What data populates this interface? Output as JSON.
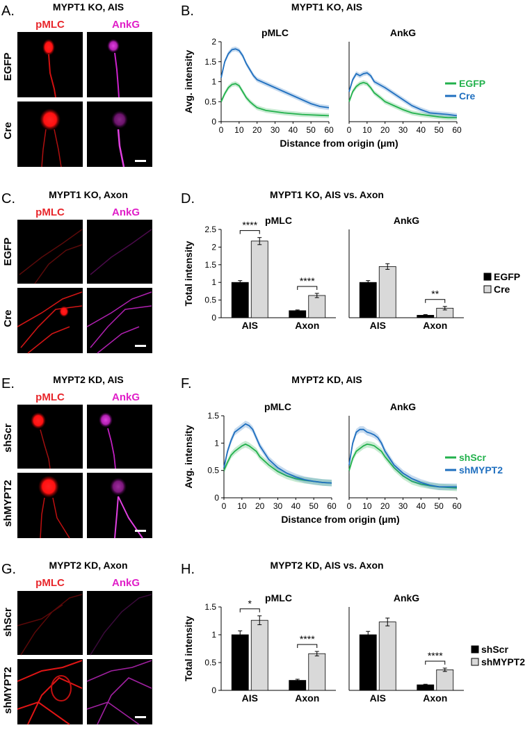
{
  "colors": {
    "egfp": "#22b14c",
    "cre": "#1f6fbf",
    "shscr": "#22b14c",
    "shmypt2": "#1f6fbf",
    "pmlc_label": "#e8262b",
    "ankg_label": "#e01ec8",
    "red_channel": "#ff1a1a",
    "magenta_channel": "#d21cd2",
    "bar_black": "#000000",
    "bar_gray": "#d9d9d9"
  },
  "panels": {
    "A": {
      "letter": "A.",
      "title": "MYPT1 KO, AIS",
      "col1": "pMLC",
      "col2": "AnkG",
      "row1": "EGFP",
      "row2": "Cre"
    },
    "C": {
      "letter": "C.",
      "title": "MYPT1 KO, Axon",
      "col1": "pMLC",
      "col2": "AnkG",
      "row1": "EGFP",
      "row2": "Cre"
    },
    "E": {
      "letter": "E.",
      "title": "MYPT2 KD, AIS",
      "col1": "pMLC",
      "col2": "AnkG",
      "row1": "shScr",
      "row2": "shMYPT2"
    },
    "G": {
      "letter": "G.",
      "title": "MYPT2 KD, Axon",
      "col1": "pMLC",
      "col2": "AnkG",
      "row1": "shScr",
      "row2": "shMYPT2"
    }
  },
  "chart_data": [
    {
      "panel": "B.",
      "type": "line",
      "title": "MYPT1 KO, AIS",
      "subplots": [
        "pMLC",
        "AnkG"
      ],
      "xlabel": "Distance from origin (μm)",
      "ylabel": "Avg. intensity",
      "xlim": [
        0,
        60
      ],
      "ylim": [
        0,
        2
      ],
      "xticks": [
        0,
        10,
        20,
        30,
        40,
        50,
        60
      ],
      "yticks": [
        0,
        0.5,
        1,
        1.5,
        2
      ],
      "ytick_labels": [
        "0",
        "0.5",
        "1",
        "1.5",
        "2"
      ],
      "legend": [
        "EGFP",
        "Cre"
      ],
      "legend_position": "right",
      "x": [
        0,
        2,
        4,
        6,
        8,
        10,
        12,
        14,
        16,
        18,
        20,
        25,
        30,
        35,
        40,
        45,
        50,
        55,
        60
      ],
      "series": [
        {
          "name": "EGFP",
          "color": "#22b14c",
          "pMLC": [
            0.5,
            0.7,
            0.85,
            0.93,
            0.95,
            0.9,
            0.75,
            0.6,
            0.5,
            0.42,
            0.35,
            0.28,
            0.25,
            0.22,
            0.2,
            0.18,
            0.17,
            0.16,
            0.15
          ],
          "AnkG": [
            0.5,
            0.75,
            0.88,
            0.95,
            0.98,
            0.95,
            0.85,
            0.72,
            0.65,
            0.58,
            0.5,
            0.4,
            0.3,
            0.22,
            0.18,
            0.15,
            0.12,
            0.1,
            0.1
          ]
        },
        {
          "name": "Cre",
          "color": "#1f6fbf",
          "pMLC": [
            1.1,
            1.5,
            1.7,
            1.8,
            1.82,
            1.78,
            1.65,
            1.45,
            1.3,
            1.15,
            1.05,
            0.95,
            0.85,
            0.75,
            0.65,
            0.55,
            0.45,
            0.38,
            0.35
          ],
          "AnkG": [
            0.75,
            1.05,
            1.2,
            1.15,
            1.2,
            1.22,
            1.15,
            1.0,
            0.95,
            0.9,
            0.85,
            0.7,
            0.55,
            0.4,
            0.3,
            0.22,
            0.2,
            0.18,
            0.15
          ]
        }
      ]
    },
    {
      "panel": "D.",
      "type": "bar",
      "title": "MYPT1 KO, AIS vs. Axon",
      "subplots": [
        "pMLC",
        "AnkG"
      ],
      "categories": [
        "AIS",
        "Axon"
      ],
      "ylabel": "Total intensity",
      "ylim": [
        0,
        2.5
      ],
      "yticks": [
        0,
        0.5,
        1,
        1.5,
        2,
        2.5
      ],
      "ytick_labels": [
        "0",
        "0.5",
        "1",
        "1.5",
        "2",
        "2.5"
      ],
      "legend": [
        "EGFP",
        "Cre"
      ],
      "series": [
        {
          "name": "EGFP",
          "pMLC": [
            1.0,
            0.2
          ],
          "pMLC_err": [
            0.05,
            0.02
          ],
          "AnkG": [
            1.0,
            0.07
          ],
          "AnkG_err": [
            0.05,
            0.02
          ]
        },
        {
          "name": "Cre",
          "pMLC": [
            2.17,
            0.63
          ],
          "pMLC_err": [
            0.1,
            0.06
          ],
          "AnkG": [
            1.45,
            0.27
          ],
          "AnkG_err": [
            0.08,
            0.05
          ]
        }
      ],
      "significance": {
        "pMLC": [
          "****",
          "****"
        ],
        "AnkG": [
          "",
          "**"
        ]
      }
    },
    {
      "panel": "F.",
      "type": "line",
      "title": "MYPT2 KD, AIS",
      "subplots": [
        "pMLC",
        "AnkG"
      ],
      "xlabel": "Distance from origin (μm)",
      "ylabel": "Avg. intensity",
      "xlim": [
        0,
        60
      ],
      "ylim": [
        0,
        1.5
      ],
      "xticks": [
        0,
        10,
        20,
        30,
        40,
        50,
        60
      ],
      "yticks": [
        0,
        0.5,
        1,
        1.5
      ],
      "ytick_labels": [
        "0",
        "0.5",
        "1",
        "1.5"
      ],
      "legend": [
        "shScr",
        "shMYPT2"
      ],
      "legend_position": "right",
      "x": [
        0,
        2,
        4,
        6,
        8,
        10,
        12,
        14,
        16,
        18,
        20,
        25,
        30,
        35,
        40,
        45,
        50,
        55,
        60
      ],
      "series": [
        {
          "name": "shScr",
          "color": "#22b14c",
          "pMLC": [
            0.5,
            0.65,
            0.78,
            0.85,
            0.9,
            0.95,
            0.98,
            0.95,
            0.9,
            0.85,
            0.75,
            0.6,
            0.48,
            0.4,
            0.35,
            0.32,
            0.3,
            0.28,
            0.27
          ],
          "AnkG": [
            0.5,
            0.72,
            0.85,
            0.9,
            0.95,
            0.98,
            0.97,
            0.95,
            0.9,
            0.85,
            0.75,
            0.55,
            0.4,
            0.3,
            0.25,
            0.22,
            0.2,
            0.19,
            0.18
          ]
        },
        {
          "name": "shMYPT2",
          "color": "#1f6fbf",
          "pMLC": [
            0.55,
            0.85,
            1.05,
            1.2,
            1.25,
            1.3,
            1.35,
            1.32,
            1.25,
            1.1,
            0.95,
            0.7,
            0.55,
            0.45,
            0.38,
            0.33,
            0.3,
            0.28,
            0.27
          ],
          "AnkG": [
            0.6,
            1.0,
            1.2,
            1.25,
            1.25,
            1.2,
            1.18,
            1.15,
            1.1,
            1.0,
            0.85,
            0.6,
            0.45,
            0.35,
            0.28,
            0.23,
            0.2,
            0.2,
            0.2
          ]
        }
      ]
    },
    {
      "panel": "H.",
      "type": "bar",
      "title": "MYPT2 KD, AIS vs. Axon",
      "subplots": [
        "pMLC",
        "AnkG"
      ],
      "categories": [
        "AIS",
        "Axon"
      ],
      "ylabel": "Total intensity",
      "ylim": [
        0,
        1.5
      ],
      "yticks": [
        0,
        0.5,
        1,
        1.5
      ],
      "ytick_labels": [
        "0",
        "0.5",
        "1",
        "1.5"
      ],
      "legend": [
        "shScr",
        "shMYPT2"
      ],
      "series": [
        {
          "name": "shScr",
          "pMLC": [
            1.0,
            0.18
          ],
          "pMLC_err": [
            0.07,
            0.02
          ],
          "AnkG": [
            1.0,
            0.1
          ],
          "AnkG_err": [
            0.06,
            0.01
          ]
        },
        {
          "name": "shMYPT2",
          "pMLC": [
            1.26,
            0.66
          ],
          "pMLC_err": [
            0.08,
            0.04
          ],
          "AnkG": [
            1.23,
            0.37
          ],
          "AnkG_err": [
            0.07,
            0.03
          ]
        }
      ],
      "significance": {
        "pMLC": [
          "*",
          "****"
        ],
        "AnkG": [
          "",
          "****"
        ]
      }
    }
  ]
}
